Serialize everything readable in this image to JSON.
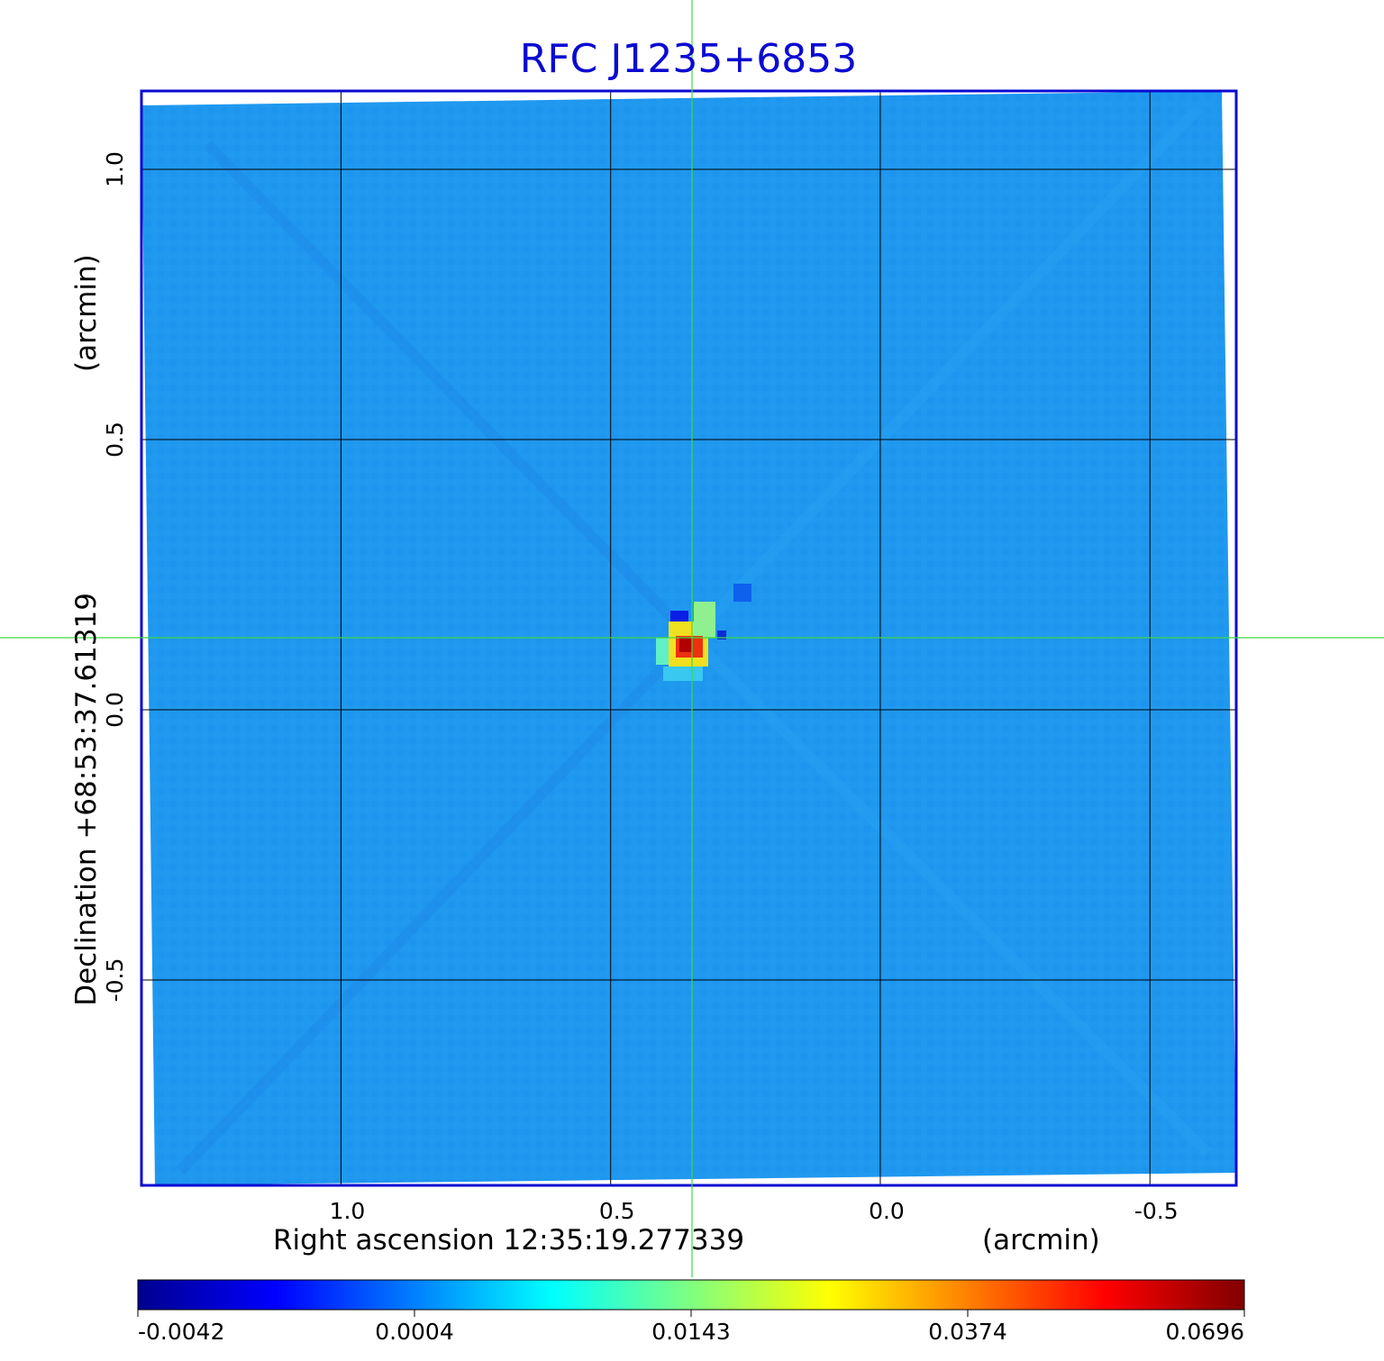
{
  "chart_data": {
    "type": "heatmap",
    "title": "RFC J1235+6853",
    "xlabel_main": "Right ascension  12:35:19.277339",
    "xlabel_unit": "(arcmin)",
    "ylabel_main": "Declination  +68:53:37.61319",
    "ylabel_unit": "(arcmin)",
    "x_ticks": [
      "1.0",
      "0.5",
      "0.0",
      "-0.5"
    ],
    "x_tick_values": [
      1.0,
      0.5,
      0.0,
      -0.5
    ],
    "y_ticks": [
      "1.0",
      "0.5",
      "0.0",
      "-0.5"
    ],
    "y_tick_values": [
      1.0,
      0.5,
      0.0,
      -0.5
    ],
    "xlim": [
      1.37,
      -0.66
    ],
    "ylim": [
      -0.88,
      1.145
    ],
    "grid": true,
    "crosshair": {
      "x": 0.35,
      "y": 0.13
    },
    "source_peak": {
      "x": 0.35,
      "y": 0.12,
      "value": 0.0696
    },
    "colorbar": {
      "ticks": [
        "-0.0042",
        "0.0004",
        "0.0143",
        "0.0374",
        "0.0696"
      ],
      "tick_values": [
        -0.0042,
        0.0004,
        0.0143,
        0.0374,
        0.0696
      ],
      "colormap": "jet"
    }
  },
  "colors": {
    "frame": "#0a0ad2",
    "title": "#0a0ad2",
    "crosshair": "#3ddc3d",
    "grid": "#000000",
    "background_field": "#1f98f0"
  }
}
